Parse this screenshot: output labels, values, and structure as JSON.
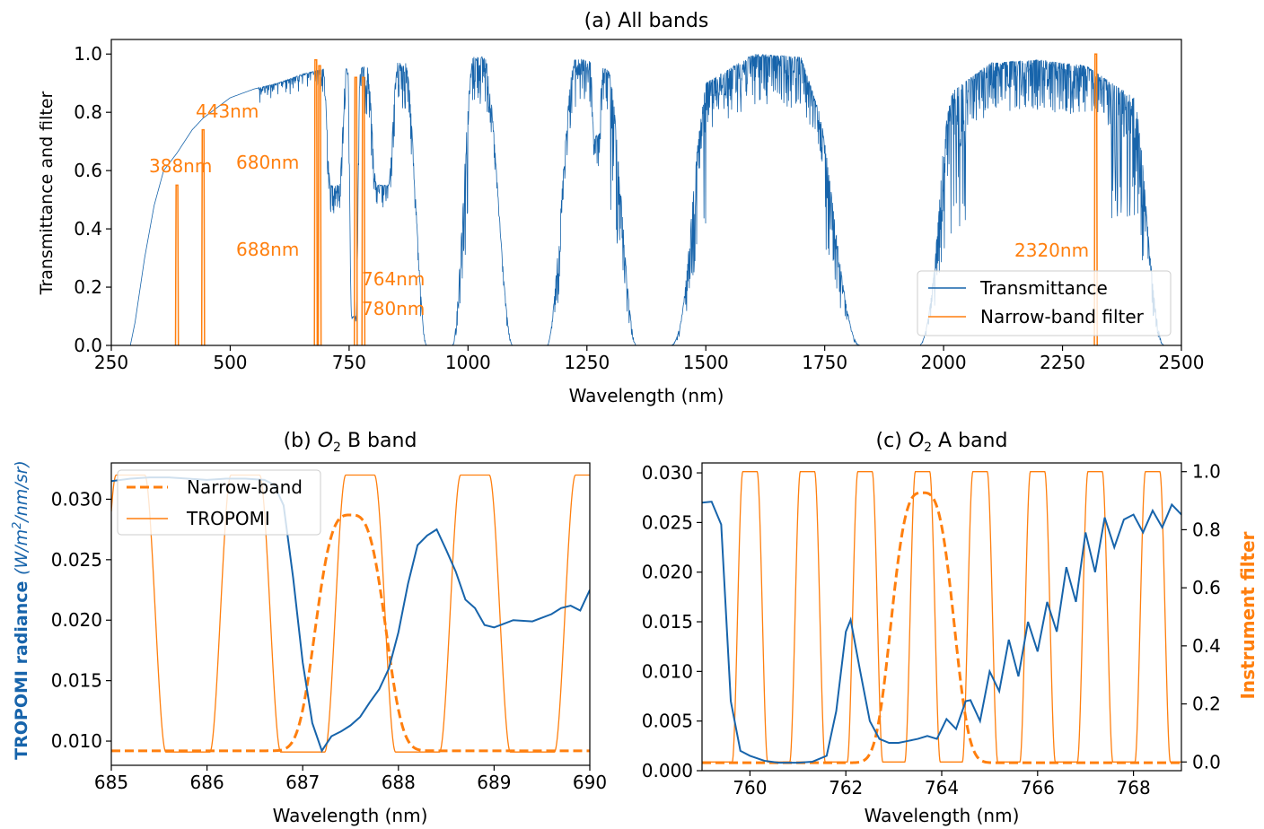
{
  "colors": {
    "blue": "#1764ab",
    "orange": "#ff7f0e",
    "axis": "#000000"
  },
  "chart_data": [
    {
      "type": "line",
      "title": "(a) All bands",
      "xlabel": "Wavelength (nm)",
      "ylabel": "Transmittance and filter",
      "xlim": [
        250,
        2500
      ],
      "ylim": [
        0,
        1.05
      ],
      "xticks": [
        250,
        500,
        750,
        1000,
        1250,
        1500,
        1750,
        2000,
        2250,
        2500
      ],
      "xtick_labels": [
        "250",
        "500",
        "750",
        "1000",
        "1250",
        "1500",
        "1750",
        "2000",
        "2250",
        "2500"
      ],
      "yticks": [
        0,
        0.2,
        0.4,
        0.6,
        0.8,
        1.0
      ],
      "ytick_labels": [
        "0.0",
        "0.2",
        "0.4",
        "0.6",
        "0.8",
        "1.0"
      ],
      "legend": {
        "position": "lower-right",
        "entries": [
          "Transmittance",
          "Narrow-band filter"
        ]
      },
      "series": [
        {
          "name": "Transmittance",
          "color": "#1764ab",
          "envelope": [
            [
              290,
              0
            ],
            [
              300,
              0.08
            ],
            [
              320,
              0.3
            ],
            [
              340,
              0.48
            ],
            [
              360,
              0.6
            ],
            [
              388,
              0.66
            ],
            [
              420,
              0.74
            ],
            [
              443,
              0.78
            ],
            [
              500,
              0.85
            ],
            [
              550,
              0.88
            ],
            [
              600,
              0.9
            ],
            [
              650,
              0.93
            ],
            [
              700,
              0.95
            ],
            [
              760,
              0.95
            ],
            [
              800,
              0.96
            ],
            [
              850,
              0.97
            ],
            [
              900,
              0.97
            ],
            [
              1000,
              0.99
            ],
            [
              1100,
              0.99
            ],
            [
              1250,
              0.98
            ],
            [
              1350,
              0.9
            ],
            [
              1400,
              0
            ],
            [
              1450,
              0.3
            ],
            [
              1500,
              0.9
            ],
            [
              1600,
              1.0
            ],
            [
              1700,
              0.99
            ],
            [
              1800,
              0.5
            ],
            [
              1850,
              0
            ],
            [
              1950,
              0
            ],
            [
              2000,
              0.85
            ],
            [
              2100,
              0.97
            ],
            [
              2200,
              0.98
            ],
            [
              2300,
              0.96
            ],
            [
              2400,
              0.85
            ],
            [
              2500,
              0.2
            ]
          ],
          "absorption_bands": [
            {
              "center": 940,
              "halfwidth": 45,
              "min": 0.0
            },
            {
              "center": 1130,
              "halfwidth": 60,
              "min": 0.0
            },
            {
              "center": 1390,
              "halfwidth": 60,
              "min": 0.0
            },
            {
              "center": 1880,
              "halfwidth": 90,
              "min": 0.0
            },
            {
              "center": 1270,
              "halfwidth": 8,
              "min": 0.72
            },
            {
              "center": 760,
              "halfwidth": 8,
              "min": 0.1
            },
            {
              "center": 720,
              "halfwidth": 15,
              "min": 0.55
            },
            {
              "center": 820,
              "halfwidth": 20,
              "min": 0.55
            },
            {
              "center": 2500,
              "halfwidth": 60,
              "min": 0.0
            }
          ]
        },
        {
          "name": "Narrow-band filter",
          "color": "#ff7f0e",
          "peaks": [
            {
              "center": 388,
              "height": 0.55,
              "label": "388nm"
            },
            {
              "center": 443,
              "height": 0.74,
              "label": "443nm"
            },
            {
              "center": 680,
              "height": 0.98,
              "label": "680nm"
            },
            {
              "center": 688,
              "height": 0.96,
              "label": "688nm"
            },
            {
              "center": 764,
              "height": 0.92,
              "label": "764nm"
            },
            {
              "center": 780,
              "height": 0.92,
              "label": "780nm"
            },
            {
              "center": 2320,
              "height": 1.0,
              "label": "2320nm"
            }
          ]
        }
      ]
    },
    {
      "type": "line",
      "title": "(b) O2 B band",
      "xlabel": "Wavelength (nm)",
      "ylabel": "TROPOMI radiance (W/m2/nm/sr)",
      "xlim": [
        685,
        690
      ],
      "ylim": [
        0.008,
        0.033
      ],
      "xticks": [
        685,
        686,
        687,
        688,
        689,
        690
      ],
      "xtick_labels": [
        "685",
        "686",
        "687",
        "688",
        "689",
        "690"
      ],
      "yticks": [
        0.01,
        0.015,
        0.02,
        0.025,
        0.03
      ],
      "ytick_labels": [
        "0.010",
        "0.015",
        "0.020",
        "0.025",
        "0.030"
      ],
      "legend": {
        "position": "top-left",
        "entries": [
          "Narrow-band",
          "TROPOMI"
        ]
      },
      "radiance": {
        "color": "#1764ab",
        "x": [
          685.0,
          685.2,
          685.4,
          685.6,
          685.8,
          686.0,
          686.2,
          686.4,
          686.6,
          686.7,
          686.8,
          686.9,
          687.0,
          687.1,
          687.2,
          687.3,
          687.4,
          687.5,
          687.6,
          687.7,
          687.8,
          687.9,
          688.0,
          688.1,
          688.2,
          688.3,
          688.4,
          688.5,
          688.6,
          688.7,
          688.8,
          688.9,
          689.0,
          689.1,
          689.2,
          689.4,
          689.6,
          689.7,
          689.8,
          689.9,
          690.0
        ],
        "y": [
          0.0315,
          0.0317,
          0.0318,
          0.0318,
          0.0317,
          0.0316,
          0.0317,
          0.0317,
          0.0316,
          0.0312,
          0.0295,
          0.0235,
          0.0165,
          0.0115,
          0.0092,
          0.0104,
          0.0108,
          0.0113,
          0.012,
          0.0132,
          0.0143,
          0.016,
          0.019,
          0.023,
          0.0262,
          0.027,
          0.0275,
          0.0258,
          0.024,
          0.0217,
          0.021,
          0.0196,
          0.0194,
          0.0197,
          0.02,
          0.0199,
          0.0205,
          0.021,
          0.0212,
          0.0208,
          0.0225
        ]
      },
      "narrowband": {
        "color": "#ff7f0e",
        "center": 687.5,
        "peak": 0.0287,
        "base": 0.0092
      },
      "tropomi_filter": {
        "color": "#ff7f0e",
        "centers": [
          685.2,
          686.4,
          687.6,
          688.8,
          690.0
        ],
        "peak": 0.032,
        "base": 0.0091
      }
    },
    {
      "type": "line",
      "title": "(c) O2 A band",
      "xlabel": "Wavelength (nm)",
      "ylabel": "",
      "y2label": "Instrument filter",
      "xlim": [
        759,
        769
      ],
      "ylim": [
        0,
        0.031
      ],
      "y2lim": [
        -0.03,
        1.03
      ],
      "xticks": [
        760,
        762,
        764,
        766,
        768
      ],
      "xtick_labels": [
        "760",
        "762",
        "764",
        "766",
        "768"
      ],
      "yticks": [
        0.0,
        0.005,
        0.01,
        0.015,
        0.02,
        0.025,
        0.03
      ],
      "ytick_labels": [
        "0.000",
        "0.005",
        "0.010",
        "0.015",
        "0.020",
        "0.025",
        "0.030"
      ],
      "y2ticks": [
        0.0,
        0.2,
        0.4,
        0.6,
        0.8,
        1.0
      ],
      "y2tick_labels": [
        "0.0",
        "0.2",
        "0.4",
        "0.6",
        "0.8",
        "1.0"
      ],
      "radiance": {
        "color": "#1764ab",
        "x": [
          759.0,
          759.2,
          759.4,
          759.6,
          759.8,
          760.0,
          760.3,
          760.6,
          761.0,
          761.3,
          761.6,
          761.8,
          762.0,
          762.1,
          762.3,
          762.5,
          762.7,
          762.9,
          763.1,
          763.3,
          763.5,
          763.7,
          763.9,
          764.1,
          764.3,
          764.5,
          764.6,
          764.8,
          765.0,
          765.2,
          765.4,
          765.6,
          765.8,
          766.0,
          766.2,
          766.4,
          766.6,
          766.8,
          767.0,
          767.2,
          767.4,
          767.6,
          767.8,
          768.0,
          768.2,
          768.4,
          768.6,
          768.8,
          769.0
        ],
        "y": [
          0.027,
          0.0271,
          0.0248,
          0.007,
          0.002,
          0.0015,
          0.001,
          0.0008,
          0.0008,
          0.0009,
          0.0015,
          0.006,
          0.014,
          0.0152,
          0.01,
          0.005,
          0.0032,
          0.0028,
          0.0028,
          0.003,
          0.0032,
          0.0035,
          0.0032,
          0.0052,
          0.0042,
          0.007,
          0.0071,
          0.005,
          0.01,
          0.008,
          0.0132,
          0.0095,
          0.015,
          0.012,
          0.017,
          0.014,
          0.0205,
          0.017,
          0.024,
          0.02,
          0.0255,
          0.0225,
          0.0253,
          0.0258,
          0.024,
          0.0262,
          0.0245,
          0.0268,
          0.0258
        ]
      },
      "narrowband": {
        "color": "#ff7f0e",
        "center": 763.6,
        "peak": 0.028,
        "base": 0.0008
      },
      "tropomi_filter": {
        "color": "#ff7f0e",
        "centers": [
          760.0,
          761.2,
          762.4,
          763.6,
          764.8,
          766.0,
          767.2,
          768.4
        ],
        "peak": 1.0,
        "base": 0.0
      }
    }
  ]
}
